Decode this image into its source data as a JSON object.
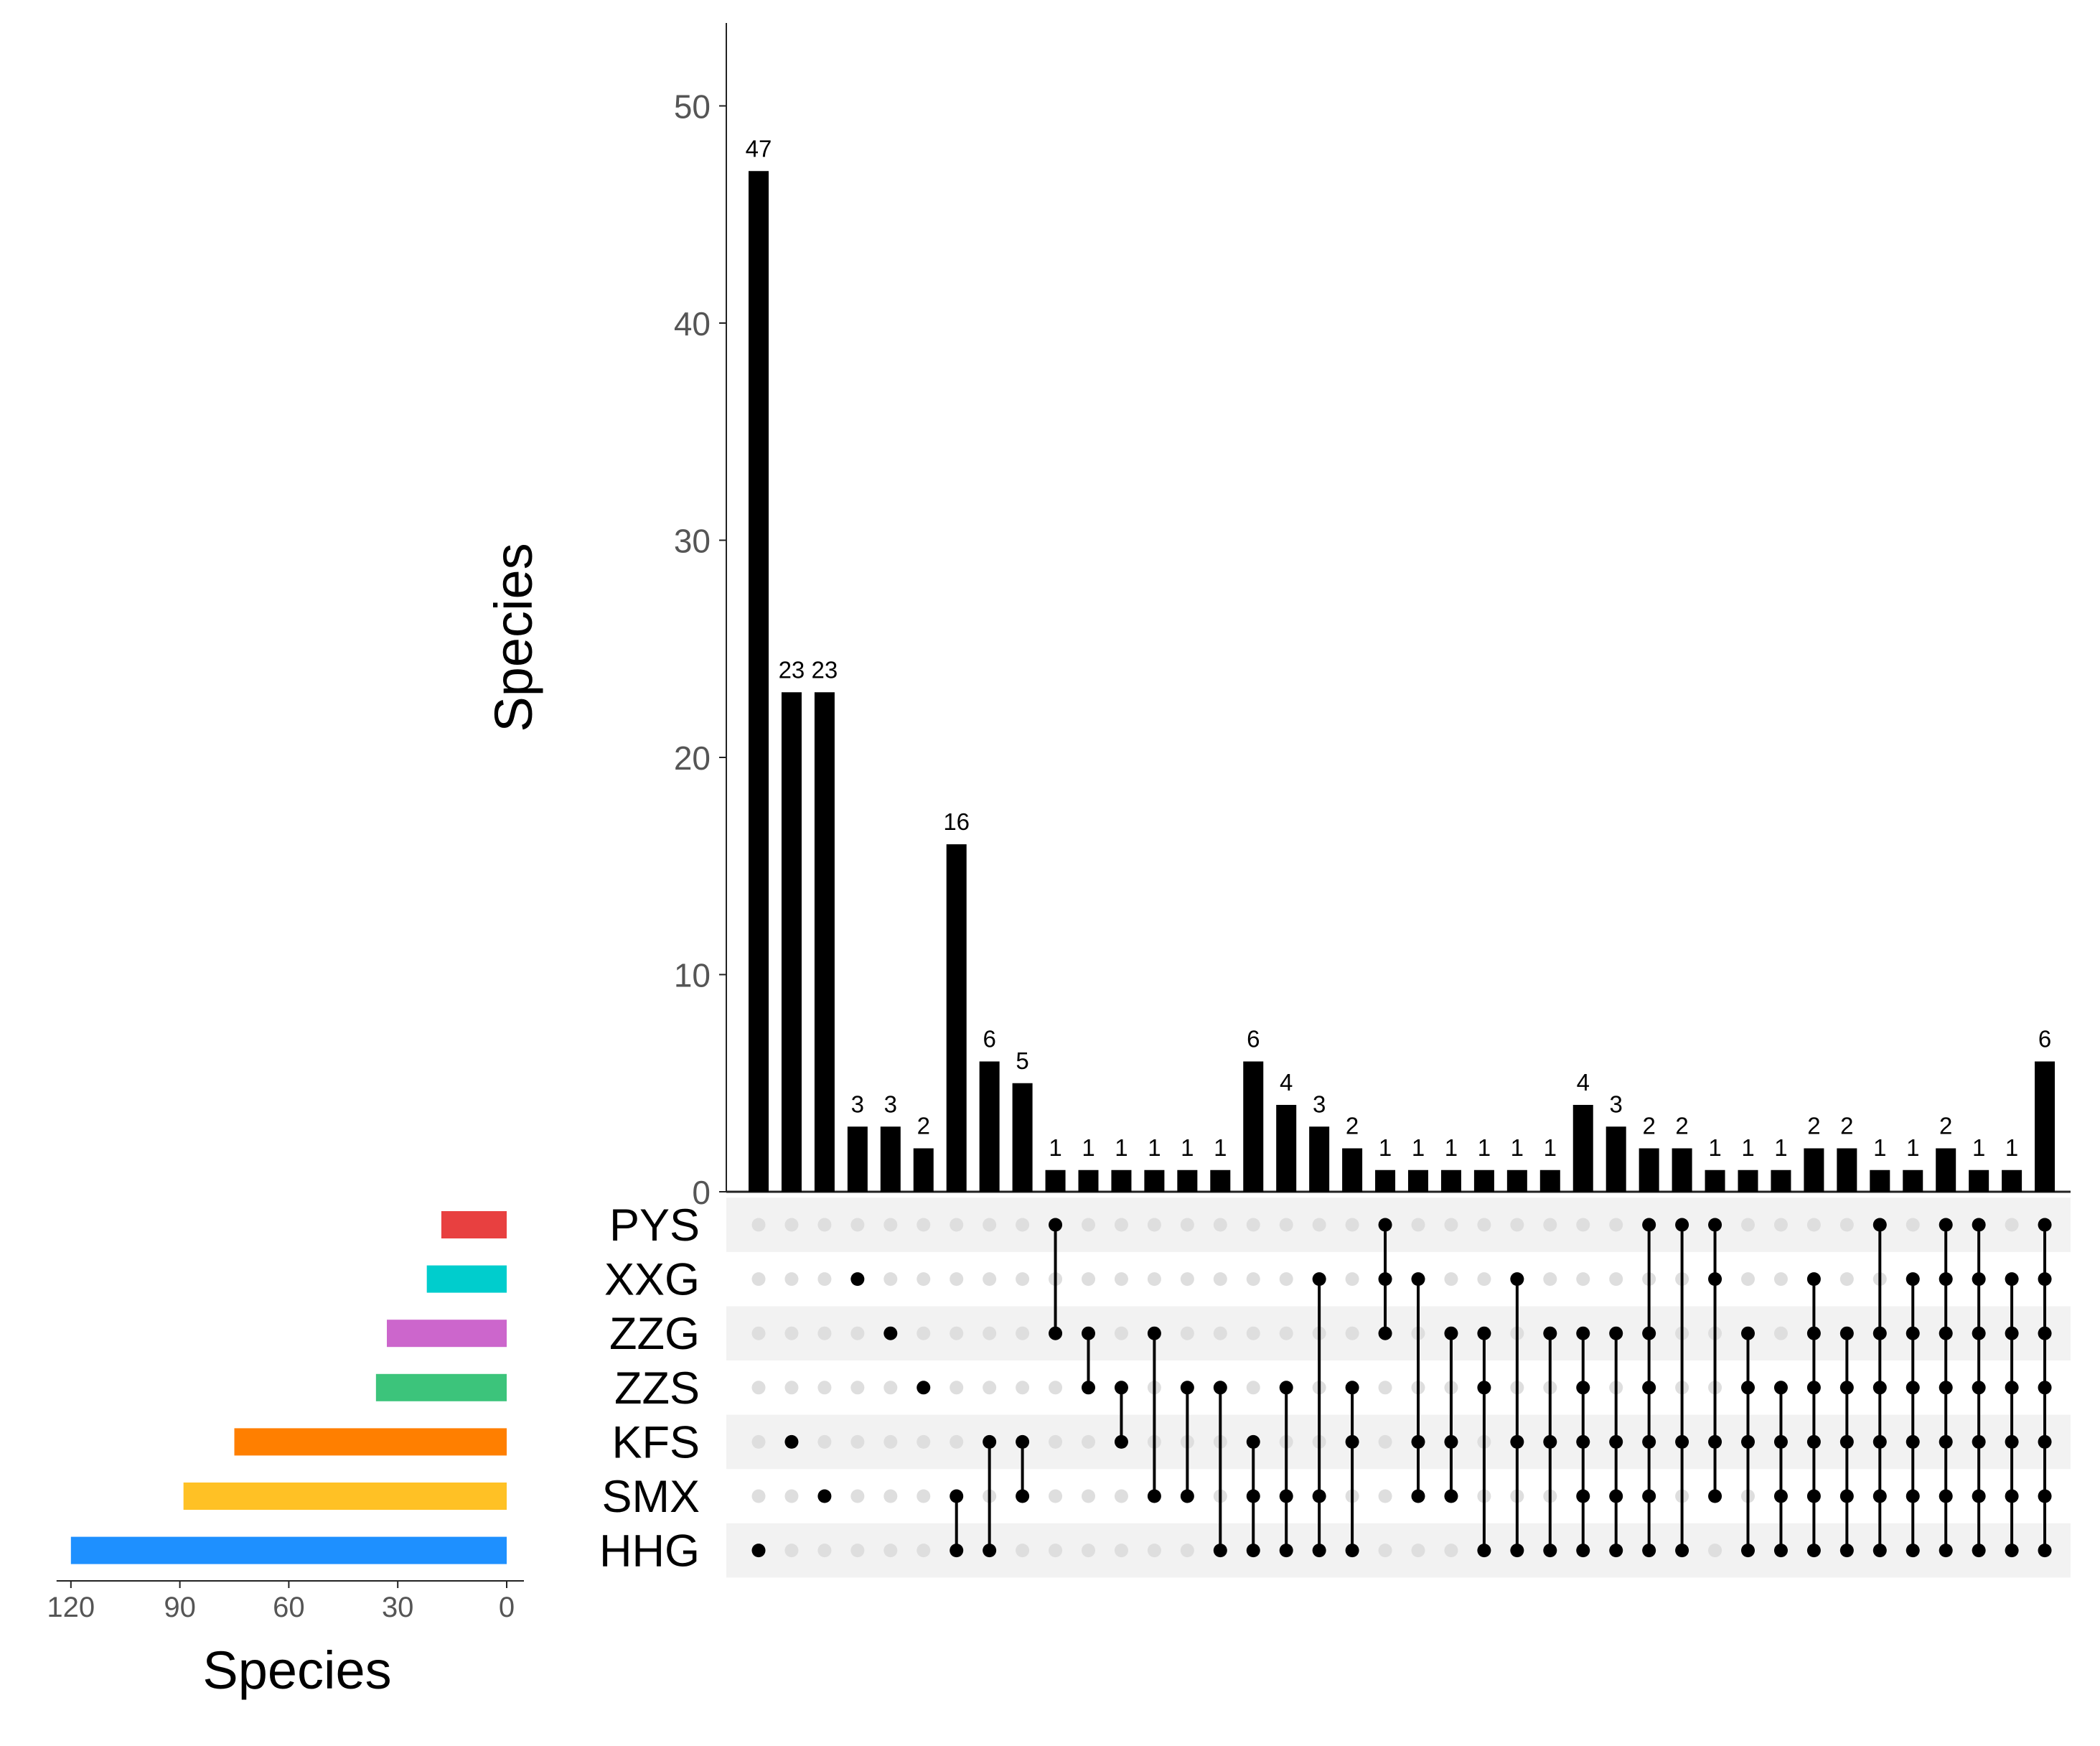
{
  "chart_data": {
    "type": "upset",
    "main_bar_axis": {
      "label": "Species",
      "ylim": [
        0,
        54
      ],
      "ticks": [
        0,
        10,
        20,
        30,
        40,
        50
      ]
    },
    "set_size_axis": {
      "label": "Species",
      "xlim": [
        120,
        0
      ],
      "ticks": [
        120,
        90,
        60,
        30,
        0
      ]
    },
    "sets": [
      {
        "name": "PYS",
        "size": 18,
        "color": "#E84040"
      },
      {
        "name": "XXG",
        "size": 22,
        "color": "#00CDCD"
      },
      {
        "name": "ZZG",
        "size": 33,
        "color": "#CC66CC"
      },
      {
        "name": "ZZS",
        "size": 36,
        "color": "#3CC47B"
      },
      {
        "name": "KFS",
        "size": 75,
        "color": "#FF7F00"
      },
      {
        "name": "SMX",
        "size": 89,
        "color": "#FFC125"
      },
      {
        "name": "HHG",
        "size": 120,
        "color": "#1E90FF"
      }
    ],
    "intersections": [
      {
        "sets": [
          "HHG"
        ],
        "value": 47,
        "label": "47"
      },
      {
        "sets": [
          "KFS"
        ],
        "value": 23,
        "label": "23"
      },
      {
        "sets": [
          "SMX"
        ],
        "value": 23,
        "label": "23"
      },
      {
        "sets": [
          "XXG"
        ],
        "value": 3,
        "label": "3"
      },
      {
        "sets": [
          "ZZG"
        ],
        "value": 3,
        "label": "3"
      },
      {
        "sets": [
          "ZZS"
        ],
        "value": 2,
        "label": "2"
      },
      {
        "sets": [
          "SMX",
          "HHG"
        ],
        "value": 16,
        "label": "16"
      },
      {
        "sets": [
          "KFS",
          "HHG"
        ],
        "value": 6,
        "label": "6"
      },
      {
        "sets": [
          "KFS",
          "SMX"
        ],
        "value": 5,
        "label": "5"
      },
      {
        "sets": [
          "PYS",
          "ZZG"
        ],
        "value": 1,
        "label": "1"
      },
      {
        "sets": [
          "ZZG",
          "ZZS"
        ],
        "value": 1,
        "label": "1"
      },
      {
        "sets": [
          "ZZS",
          "KFS"
        ],
        "value": 1,
        "label": "1"
      },
      {
        "sets": [
          "ZZG",
          "SMX"
        ],
        "value": 1,
        "label": "1"
      },
      {
        "sets": [
          "ZZS",
          "SMX"
        ],
        "value": 1,
        "label": "1"
      },
      {
        "sets": [
          "ZZS",
          "HHG"
        ],
        "value": 1,
        "label": "1"
      },
      {
        "sets": [
          "KFS",
          "SMX",
          "HHG"
        ],
        "value": 6,
        "label": "6"
      },
      {
        "sets": [
          "ZZS",
          "SMX",
          "HHG"
        ],
        "value": 4,
        "label": "4"
      },
      {
        "sets": [
          "XXG",
          "SMX",
          "HHG"
        ],
        "value": 3,
        "label": "3"
      },
      {
        "sets": [
          "ZZS",
          "KFS",
          "HHG"
        ],
        "value": 2,
        "label": "2"
      },
      {
        "sets": [
          "PYS",
          "XXG",
          "ZZG"
        ],
        "value": 1,
        "label": "1"
      },
      {
        "sets": [
          "XXG",
          "KFS",
          "SMX"
        ],
        "value": 1,
        "label": "1"
      },
      {
        "sets": [
          "ZZG",
          "KFS",
          "SMX"
        ],
        "value": 1,
        "label": "1"
      },
      {
        "sets": [
          "ZZG",
          "ZZS",
          "HHG"
        ],
        "value": 1,
        "label": "1"
      },
      {
        "sets": [
          "XXG",
          "KFS",
          "HHG"
        ],
        "value": 1,
        "label": "1"
      },
      {
        "sets": [
          "ZZG",
          "KFS",
          "HHG"
        ],
        "value": 1,
        "label": "1"
      },
      {
        "sets": [
          "ZZG",
          "ZZS",
          "KFS",
          "SMX",
          "HHG"
        ],
        "value": 4,
        "label": "4"
      },
      {
        "sets": [
          "ZZG",
          "KFS",
          "SMX",
          "HHG"
        ],
        "value": 3,
        "label": "3"
      },
      {
        "sets": [
          "PYS",
          "ZZG",
          "ZZS",
          "KFS",
          "SMX",
          "HHG"
        ],
        "value": 2,
        "label": "2"
      },
      {
        "sets": [
          "PYS",
          "KFS",
          "HHG"
        ],
        "value": 2,
        "label": "2"
      },
      {
        "sets": [
          "PYS",
          "XXG",
          "KFS",
          "SMX"
        ],
        "value": 1,
        "label": "1"
      },
      {
        "sets": [
          "ZZG",
          "ZZS",
          "KFS",
          "HHG"
        ],
        "value": 1,
        "label": "1"
      },
      {
        "sets": [
          "ZZS",
          "KFS",
          "SMX",
          "HHG"
        ],
        "value": 1,
        "label": "1"
      },
      {
        "sets": [
          "XXG",
          "ZZG",
          "ZZS",
          "KFS",
          "SMX",
          "HHG"
        ],
        "value": 2,
        "label": "2"
      },
      {
        "sets": [
          "ZZG",
          "ZZS",
          "KFS",
          "SMX",
          "HHG"
        ],
        "value": 2,
        "label": "2"
      },
      {
        "sets": [
          "PYS",
          "ZZG",
          "ZZS",
          "KFS",
          "SMX",
          "HHG"
        ],
        "value": 1,
        "label": "1"
      },
      {
        "sets": [
          "XXG",
          "ZZG",
          "ZZS",
          "KFS",
          "SMX",
          "HHG"
        ],
        "value": 1,
        "label": "1"
      },
      {
        "sets": [
          "PYS",
          "XXG",
          "ZZG",
          "ZZS",
          "KFS",
          "SMX",
          "HHG"
        ],
        "value": 2,
        "label": "2"
      },
      {
        "sets": [
          "PYS",
          "XXG",
          "ZZG",
          "ZZS",
          "KFS",
          "SMX",
          "HHG"
        ],
        "value": 1,
        "label": "1"
      },
      {
        "sets": [
          "XXG",
          "ZZG",
          "ZZS",
          "KFS",
          "SMX",
          "HHG"
        ],
        "value": 1,
        "label": "1"
      },
      {
        "sets": [
          "PYS",
          "XXG",
          "ZZG",
          "ZZS",
          "KFS",
          "SMX",
          "HHG"
        ],
        "value": 6,
        "label": "6"
      }
    ]
  }
}
